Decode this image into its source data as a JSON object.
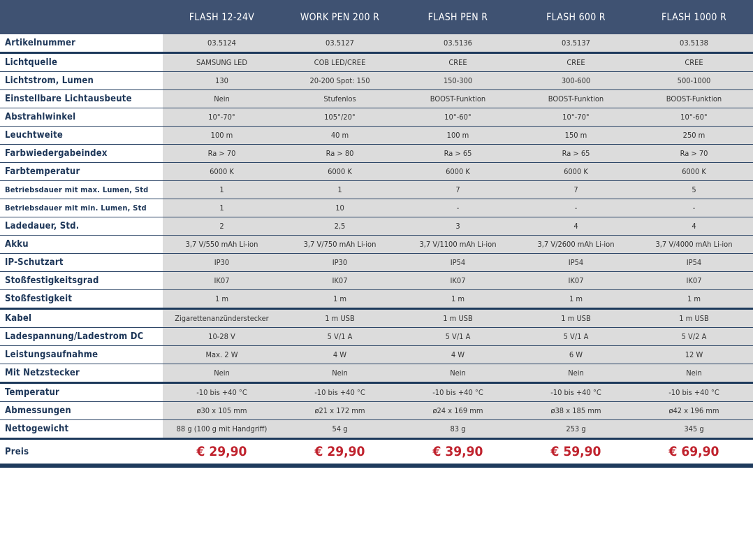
{
  "products": [
    "FLASH 12-24V",
    "WORK PEN 200 R",
    "FLASH PEN R",
    "FLASH 600 R",
    "FLASH 1000 R"
  ],
  "rows": [
    {
      "label": "Artikelnummer",
      "values": [
        "03.5124",
        "03.5127",
        "03.5136",
        "03.5137",
        "03.5138"
      ]
    },
    {
      "label": "Lichtquelle",
      "values": [
        "SAMSUNG LED",
        "COB LED/CREE",
        "CREE",
        "CREE",
        "CREE"
      ]
    },
    {
      "label": "Lichtstrom, Lumen",
      "values": [
        "130",
        "20-200 Spot: 150",
        "150-300",
        "300-600",
        "500-1000"
      ]
    },
    {
      "label": "Einstellbare Lichtausbeute",
      "values": [
        "Nein",
        "Stufenlos",
        "BOOST-Funktion",
        "BOOST-Funktion",
        "BOOST-Funktion"
      ]
    },
    {
      "label": "Abstrahlwinkel",
      "values": [
        "10°-70°",
        "105°/20°",
        "10°-60°",
        "10°-70°",
        "10°-60°"
      ]
    },
    {
      "label": "Leuchtweite",
      "values": [
        "100 m",
        "40 m",
        "100 m",
        "150 m",
        "250 m"
      ]
    },
    {
      "label": "Farbwiedergabeindex",
      "values": [
        "Ra > 70",
        "Ra > 80",
        "Ra > 65",
        "Ra > 65",
        "Ra > 70"
      ]
    },
    {
      "label": "Farbtemperatur",
      "values": [
        "6000 K",
        "6000 K",
        "6000 K",
        "6000 K",
        "6000 K"
      ]
    },
    {
      "label": "Betriebsdauer mit max. Lumen, Std",
      "values": [
        "1",
        "1",
        "7",
        "7",
        "5"
      ]
    },
    {
      "label": "Betriebsdauer mit min. Lumen, Std",
      "values": [
        "1",
        "10",
        "-",
        "-",
        "-"
      ]
    },
    {
      "label": "Ladedauer, Std.",
      "values": [
        "2",
        "2,5",
        "3",
        "4",
        "4"
      ]
    },
    {
      "label": "Akku",
      "values": [
        "3,7 V/550 mAh Li-ion",
        "3,7 V/750 mAh Li-ion",
        "3,7 V/1100 mAh Li-ion",
        "3,7 V/2600 mAh Li-ion",
        "3,7 V/4000 mAh Li-ion"
      ]
    },
    {
      "label": "IP-Schutzart",
      "values": [
        "IP30",
        "IP30",
        "IP54",
        "IP54",
        "IP54"
      ]
    },
    {
      "label": "Stoßfestigkeitsgrad",
      "values": [
        "IK07",
        "IK07",
        "IK07",
        "IK07",
        "IK07"
      ]
    },
    {
      "label": "Stoßfestigkeit",
      "values": [
        "1 m",
        "1 m",
        "1 m",
        "1 m",
        "1 m"
      ]
    },
    {
      "label": "Kabel",
      "values": [
        "Zigarettenanzünderstecker",
        "1 m USB",
        "1 m USB",
        "1 m USB",
        "1 m USB"
      ]
    },
    {
      "label": "Ladespannung/Ladestrom DC",
      "values": [
        "10-28 V",
        "5 V/1 A",
        "5 V/1 A",
        "5 V/1 A",
        "5 V/2 A"
      ]
    },
    {
      "label": "Leistungsaufnahme",
      "values": [
        "Max. 2 W",
        "4 W",
        "4 W",
        "6 W",
        "12 W"
      ]
    },
    {
      "label": "Mit Netzstecker",
      "values": [
        "Nein",
        "Nein",
        "Nein",
        "Nein",
        "Nein"
      ]
    },
    {
      "label": "Temperatur",
      "values": [
        "-10 bis +40 °C",
        "-10 bis +40 °C",
        "-10 bis +40 °C",
        "-10 bis +40 °C",
        "-10 bis +40 °C"
      ]
    },
    {
      "label": "Abmessungen",
      "values": [
        "ø30 x 105 mm",
        "ø21 x 172 mm",
        "ø24 x 169 mm",
        "ø38 x 185 mm",
        "ø42 x 196 mm"
      ]
    },
    {
      "label": "Nettogewicht",
      "values": [
        "88 g (100 g mit Handgriff)",
        "54 g",
        "83 g",
        "253 g",
        "345 g"
      ]
    }
  ],
  "price": {
    "label": "Preis",
    "values": [
      "€ 29,90",
      "€ 29,90",
      "€ 39,90",
      "€ 59,90",
      "€ 69,90"
    ]
  },
  "colors": {
    "header": "#3f5272",
    "price": "#c0232e",
    "separator": "#1e3a5c"
  }
}
